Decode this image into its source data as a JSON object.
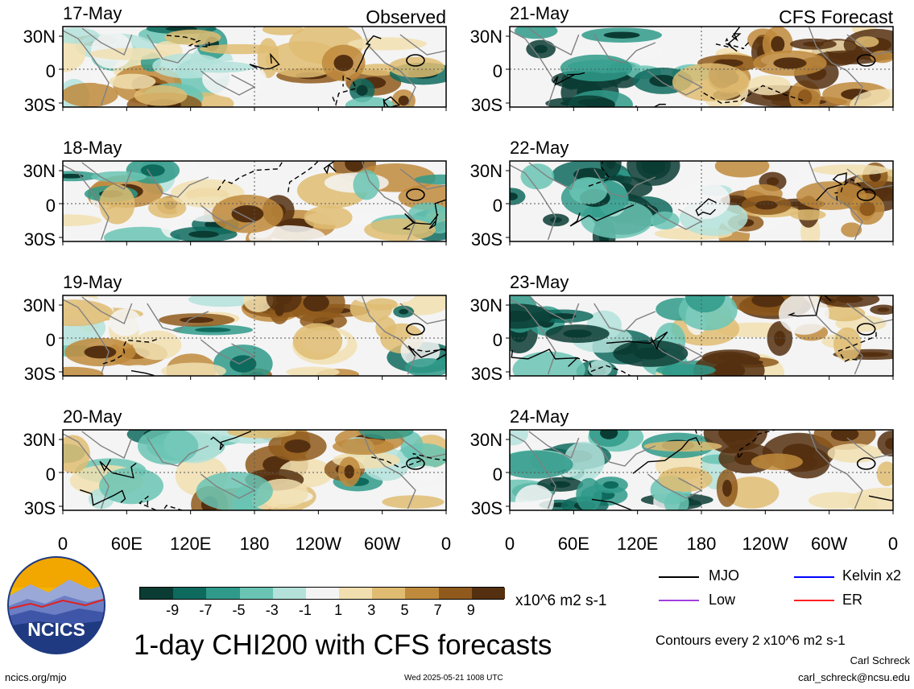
{
  "chart_data": [
    {
      "type": "heatmap",
      "panel": "observed",
      "date": "17-May",
      "title": "Observed"
    },
    {
      "type": "heatmap",
      "panel": "observed",
      "date": "18-May"
    },
    {
      "type": "heatmap",
      "panel": "observed",
      "date": "19-May"
    },
    {
      "type": "heatmap",
      "panel": "observed",
      "date": "20-May"
    },
    {
      "type": "heatmap",
      "panel": "forecast",
      "date": "21-May",
      "title": "CFS Forecast"
    },
    {
      "type": "heatmap",
      "panel": "forecast",
      "date": "22-May"
    },
    {
      "type": "heatmap",
      "panel": "forecast",
      "date": "23-May"
    },
    {
      "type": "heatmap",
      "panel": "forecast",
      "date": "24-May"
    }
  ],
  "axes": {
    "y_ticks": [
      "30N",
      "0",
      "30S"
    ],
    "x_ticks": [
      "0",
      "60E",
      "120E",
      "180",
      "120W",
      "60W",
      "0"
    ]
  },
  "colorbar": {
    "labels": [
      "-9",
      "-7",
      "-5",
      "-3",
      "-1",
      "1",
      "3",
      "5",
      "7",
      "9"
    ],
    "colors": [
      "#0a3c34",
      "#0f6a5e",
      "#2f9a8a",
      "#6ac4b4",
      "#b4e2da",
      "#f4f4f4",
      "#f1dfb0",
      "#dfbc72",
      "#c08a3c",
      "#8f5a1c",
      "#553010"
    ],
    "units": "x10^6 m2 s-1"
  },
  "legend": [
    {
      "label": "MJO",
      "color": "#000000"
    },
    {
      "label": "Kelvin x2",
      "color": "#0000ff"
    },
    {
      "label": "Low",
      "color": "#a040e0"
    },
    {
      "label": "ER",
      "color": "#ff2020"
    }
  ],
  "main_title": "1-day CHI200 with CFS forecasts",
  "contour_note": "Contours every 2 x10^6 m2 s-1",
  "logo_text": "NCICS",
  "footer": {
    "url": "ncics.org/mjo",
    "timestamp": "Wed 2025-05-21 1008 UTC",
    "author": "Carl Schreck",
    "email": "carl_schreck@ncsu.edu"
  }
}
